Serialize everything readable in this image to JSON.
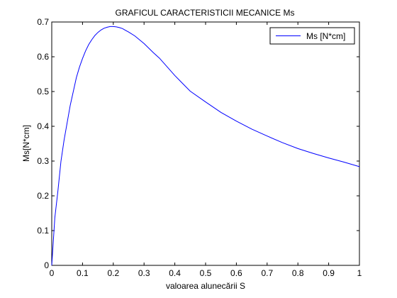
{
  "chart_data": {
    "type": "line",
    "title": "GRAFICUL CARACTERISTICII MECANICE Ms",
    "xlabel": "valoarea alunecării S",
    "ylabel": "Ms[N*cm]",
    "xlim": [
      0,
      1
    ],
    "ylim": [
      0,
      0.7
    ],
    "xticks": [
      0,
      0.1,
      0.2,
      0.3,
      0.4,
      0.5,
      0.6,
      0.7,
      0.8,
      0.9,
      1
    ],
    "xtick_labels": [
      "0",
      "0.1",
      "0.2",
      "0.3",
      "0.4",
      "0.5",
      "0.6",
      "0.7",
      "0.8",
      "0.9",
      "1"
    ],
    "yticks": [
      0,
      0.1,
      0.2,
      0.3,
      0.4,
      0.5,
      0.6,
      0.7
    ],
    "ytick_labels": [
      "0",
      "0.1",
      "0.2",
      "0.3",
      "0.4",
      "0.5",
      "0.6",
      "0.7"
    ],
    "grid": false,
    "legend_position": "top-right",
    "series": [
      {
        "name": "Ms [N*cm]",
        "color": "#0000ff",
        "x": [
          0,
          0.01,
          0.02,
          0.03,
          0.04,
          0.05,
          0.06,
          0.07,
          0.08,
          0.09,
          0.1,
          0.11,
          0.12,
          0.13,
          0.14,
          0.15,
          0.16,
          0.17,
          0.18,
          0.19,
          0.2,
          0.21,
          0.22,
          0.23,
          0.24,
          0.25,
          0.27,
          0.3,
          0.33,
          0.35,
          0.4,
          0.45,
          0.5,
          0.55,
          0.6,
          0.65,
          0.7,
          0.75,
          0.8,
          0.85,
          0.9,
          0.95,
          1.0
        ],
        "y": [
          0,
          0.137,
          0.214,
          0.3,
          0.36,
          0.41,
          0.46,
          0.5,
          0.54,
          0.57,
          0.595,
          0.617,
          0.635,
          0.649,
          0.661,
          0.67,
          0.677,
          0.682,
          0.685,
          0.687,
          0.687,
          0.686,
          0.684,
          0.681,
          0.676,
          0.671,
          0.66,
          0.638,
          0.612,
          0.596,
          0.546,
          0.501,
          0.47,
          0.44,
          0.415,
          0.392,
          0.372,
          0.353,
          0.336,
          0.322,
          0.309,
          0.297,
          0.284
        ]
      }
    ]
  }
}
